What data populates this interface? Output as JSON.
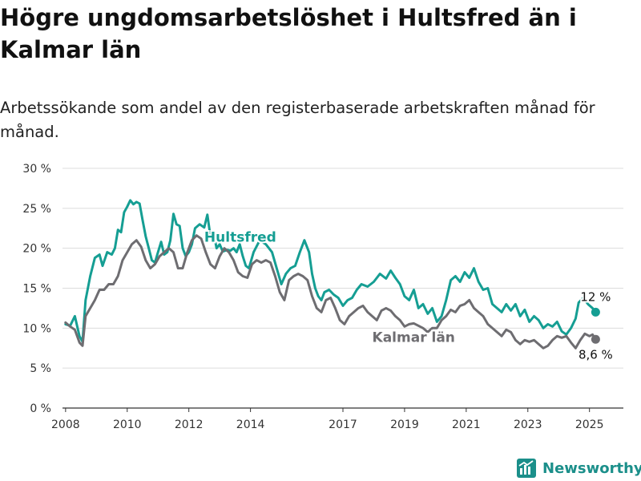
{
  "title": "Högre ungdomsarbetslöshet i Hultsfred än i Kalmar län",
  "subtitle": "Arbetssökande som andel av den registerbaserade arbetskraften månad för månad.",
  "brand": {
    "name": "Newsworthy",
    "icon": "newsworthy-logo-icon"
  },
  "colors": {
    "hultsfred": "#159e93",
    "kalmar": "#6e6d71",
    "grid": "#dcdcdc",
    "axis": "#333333"
  },
  "chart_data": {
    "type": "line",
    "title": "Högre ungdomsarbetslöshet i Hultsfred än i Kalmar län",
    "subtitle": "Arbetssökande som andel av den registerbaserade arbetskraften månad för månad.",
    "xlabel": "",
    "ylabel": "",
    "xlim": [
      2007.9,
      2026.1
    ],
    "ylim": [
      0,
      30
    ],
    "x_ticks": [
      2008,
      2010,
      2012,
      2014,
      2017,
      2019,
      2021,
      2023,
      2025
    ],
    "y_ticks": [
      {
        "value": 0,
        "label": "0 %"
      },
      {
        "value": 5,
        "label": "5 %"
      },
      {
        "value": 10,
        "label": "10 %"
      },
      {
        "value": 15,
        "label": "15 %"
      },
      {
        "value": 20,
        "label": "20 %"
      },
      {
        "value": 25,
        "label": "25 %"
      },
      {
        "value": 30,
        "label": "30 %"
      }
    ],
    "grid": "horizontal",
    "legend": "inline labels",
    "series": [
      {
        "name": "Hultsfred",
        "color": "#159e93",
        "end_label": "12 %",
        "points": [
          [
            2008.0,
            10.5
          ],
          [
            2008.15,
            10.3
          ],
          [
            2008.3,
            11.5
          ],
          [
            2008.45,
            9.0
          ],
          [
            2008.55,
            8.3
          ],
          [
            2008.65,
            13.5
          ],
          [
            2008.8,
            16.5
          ],
          [
            2008.95,
            18.8
          ],
          [
            2009.1,
            19.2
          ],
          [
            2009.2,
            17.8
          ],
          [
            2009.35,
            19.5
          ],
          [
            2009.5,
            19.2
          ],
          [
            2009.6,
            20.0
          ],
          [
            2009.7,
            22.3
          ],
          [
            2009.8,
            22.0
          ],
          [
            2009.9,
            24.5
          ],
          [
            2010.0,
            25.2
          ],
          [
            2010.1,
            26.0
          ],
          [
            2010.2,
            25.5
          ],
          [
            2010.3,
            25.8
          ],
          [
            2010.4,
            25.6
          ],
          [
            2010.5,
            23.5
          ],
          [
            2010.6,
            21.5
          ],
          [
            2010.7,
            20.0
          ],
          [
            2010.8,
            18.5
          ],
          [
            2010.9,
            18.2
          ],
          [
            2011.0,
            19.5
          ],
          [
            2011.1,
            20.8
          ],
          [
            2011.2,
            19.2
          ],
          [
            2011.3,
            19.5
          ],
          [
            2011.4,
            21.0
          ],
          [
            2011.5,
            24.3
          ],
          [
            2011.6,
            23.0
          ],
          [
            2011.7,
            22.8
          ],
          [
            2011.8,
            20.0
          ],
          [
            2011.9,
            19.0
          ],
          [
            2012.0,
            19.5
          ],
          [
            2012.1,
            20.5
          ],
          [
            2012.2,
            22.5
          ],
          [
            2012.35,
            23.0
          ],
          [
            2012.5,
            22.6
          ],
          [
            2012.6,
            24.2
          ],
          [
            2012.7,
            21.5
          ],
          [
            2012.8,
            22.0
          ],
          [
            2012.9,
            20.0
          ],
          [
            2013.0,
            20.5
          ],
          [
            2013.1,
            19.6
          ],
          [
            2013.25,
            19.8
          ],
          [
            2013.35,
            19.7
          ],
          [
            2013.45,
            20.0
          ],
          [
            2013.55,
            19.5
          ],
          [
            2013.65,
            20.5
          ],
          [
            2013.75,
            19.0
          ],
          [
            2013.85,
            17.8
          ],
          [
            2013.95,
            17.5
          ],
          [
            2014.1,
            19.5
          ],
          [
            2014.3,
            21.0
          ],
          [
            2014.5,
            20.5
          ],
          [
            2014.7,
            19.5
          ],
          [
            2014.85,
            17.5
          ],
          [
            2015.0,
            15.5
          ],
          [
            2015.15,
            16.8
          ],
          [
            2015.3,
            17.5
          ],
          [
            2015.45,
            17.8
          ],
          [
            2015.6,
            19.5
          ],
          [
            2015.75,
            21.0
          ],
          [
            2015.9,
            19.5
          ],
          [
            2016.0,
            16.8
          ],
          [
            2016.1,
            15.0
          ],
          [
            2016.2,
            14.0
          ],
          [
            2016.3,
            13.5
          ],
          [
            2016.4,
            14.5
          ],
          [
            2016.55,
            14.8
          ],
          [
            2016.7,
            14.2
          ],
          [
            2016.85,
            13.8
          ],
          [
            2017.0,
            12.8
          ],
          [
            2017.15,
            13.5
          ],
          [
            2017.3,
            13.8
          ],
          [
            2017.45,
            14.8
          ],
          [
            2017.6,
            15.5
          ],
          [
            2017.8,
            15.2
          ],
          [
            2018.0,
            15.8
          ],
          [
            2018.2,
            16.8
          ],
          [
            2018.4,
            16.2
          ],
          [
            2018.55,
            17.2
          ],
          [
            2018.7,
            16.3
          ],
          [
            2018.85,
            15.5
          ],
          [
            2019.0,
            14.0
          ],
          [
            2019.15,
            13.5
          ],
          [
            2019.3,
            14.8
          ],
          [
            2019.45,
            12.5
          ],
          [
            2019.6,
            13.0
          ],
          [
            2019.75,
            11.8
          ],
          [
            2019.9,
            12.5
          ],
          [
            2020.05,
            10.8
          ],
          [
            2020.2,
            11.5
          ],
          [
            2020.35,
            13.5
          ],
          [
            2020.5,
            16.0
          ],
          [
            2020.65,
            16.5
          ],
          [
            2020.8,
            15.8
          ],
          [
            2020.95,
            17.0
          ],
          [
            2021.1,
            16.3
          ],
          [
            2021.25,
            17.5
          ],
          [
            2021.4,
            15.8
          ],
          [
            2021.55,
            14.8
          ],
          [
            2021.7,
            15.0
          ],
          [
            2021.85,
            13.0
          ],
          [
            2022.0,
            12.5
          ],
          [
            2022.15,
            12.0
          ],
          [
            2022.3,
            13.0
          ],
          [
            2022.45,
            12.2
          ],
          [
            2022.6,
            13.0
          ],
          [
            2022.75,
            11.5
          ],
          [
            2022.9,
            12.3
          ],
          [
            2023.05,
            10.8
          ],
          [
            2023.2,
            11.5
          ],
          [
            2023.35,
            11.0
          ],
          [
            2023.5,
            10.0
          ],
          [
            2023.65,
            10.5
          ],
          [
            2023.8,
            10.2
          ],
          [
            2023.95,
            10.8
          ],
          [
            2024.1,
            9.6
          ],
          [
            2024.25,
            9.2
          ],
          [
            2024.4,
            10.0
          ],
          [
            2024.55,
            11.2
          ],
          [
            2024.65,
            13.2
          ],
          [
            2024.8,
            13.8
          ],
          [
            2024.95,
            13.0
          ],
          [
            2025.1,
            12.5
          ],
          [
            2025.2,
            12.0
          ]
        ]
      },
      {
        "name": "Kalmar län",
        "color": "#6e6d71",
        "end_label": "8,6 %",
        "points": [
          [
            2008.0,
            10.7
          ],
          [
            2008.15,
            10.2
          ],
          [
            2008.3,
            9.8
          ],
          [
            2008.45,
            8.2
          ],
          [
            2008.55,
            7.8
          ],
          [
            2008.65,
            11.5
          ],
          [
            2008.8,
            12.5
          ],
          [
            2008.95,
            13.5
          ],
          [
            2009.1,
            14.8
          ],
          [
            2009.25,
            14.8
          ],
          [
            2009.4,
            15.5
          ],
          [
            2009.55,
            15.5
          ],
          [
            2009.7,
            16.5
          ],
          [
            2009.85,
            18.5
          ],
          [
            2010.0,
            19.5
          ],
          [
            2010.15,
            20.5
          ],
          [
            2010.3,
            21.0
          ],
          [
            2010.45,
            20.2
          ],
          [
            2010.6,
            18.5
          ],
          [
            2010.75,
            17.5
          ],
          [
            2010.9,
            18.0
          ],
          [
            2011.05,
            19.0
          ],
          [
            2011.2,
            19.5
          ],
          [
            2011.35,
            20.0
          ],
          [
            2011.5,
            19.5
          ],
          [
            2011.65,
            17.5
          ],
          [
            2011.8,
            17.5
          ],
          [
            2011.95,
            19.5
          ],
          [
            2012.1,
            21.0
          ],
          [
            2012.25,
            21.6
          ],
          [
            2012.4,
            21.2
          ],
          [
            2012.55,
            19.5
          ],
          [
            2012.7,
            18.0
          ],
          [
            2012.85,
            17.5
          ],
          [
            2013.0,
            19.0
          ],
          [
            2013.15,
            20.0
          ],
          [
            2013.3,
            19.5
          ],
          [
            2013.45,
            18.5
          ],
          [
            2013.6,
            17.0
          ],
          [
            2013.75,
            16.5
          ],
          [
            2013.9,
            16.3
          ],
          [
            2014.05,
            18.0
          ],
          [
            2014.2,
            18.5
          ],
          [
            2014.35,
            18.2
          ],
          [
            2014.5,
            18.5
          ],
          [
            2014.65,
            18.2
          ],
          [
            2014.8,
            16.5
          ],
          [
            2014.95,
            14.5
          ],
          [
            2015.1,
            13.5
          ],
          [
            2015.25,
            16.0
          ],
          [
            2015.4,
            16.5
          ],
          [
            2015.55,
            16.8
          ],
          [
            2015.7,
            16.5
          ],
          [
            2015.85,
            16.0
          ],
          [
            2016.0,
            14.0
          ],
          [
            2016.15,
            12.5
          ],
          [
            2016.3,
            12.0
          ],
          [
            2016.45,
            13.5
          ],
          [
            2016.6,
            13.8
          ],
          [
            2016.75,
            12.5
          ],
          [
            2016.9,
            11.0
          ],
          [
            2017.05,
            10.5
          ],
          [
            2017.2,
            11.5
          ],
          [
            2017.35,
            12.0
          ],
          [
            2017.5,
            12.5
          ],
          [
            2017.65,
            12.8
          ],
          [
            2017.8,
            12.0
          ],
          [
            2017.95,
            11.5
          ],
          [
            2018.1,
            11.0
          ],
          [
            2018.25,
            12.2
          ],
          [
            2018.4,
            12.5
          ],
          [
            2018.55,
            12.2
          ],
          [
            2018.7,
            11.5
          ],
          [
            2018.85,
            11.0
          ],
          [
            2019.0,
            10.2
          ],
          [
            2019.15,
            10.5
          ],
          [
            2019.3,
            10.6
          ],
          [
            2019.45,
            10.3
          ],
          [
            2019.6,
            10.0
          ],
          [
            2019.75,
            9.5
          ],
          [
            2019.9,
            10.0
          ],
          [
            2020.05,
            10.0
          ],
          [
            2020.2,
            11.0
          ],
          [
            2020.35,
            11.5
          ],
          [
            2020.5,
            12.3
          ],
          [
            2020.65,
            12.0
          ],
          [
            2020.8,
            12.8
          ],
          [
            2020.95,
            13.0
          ],
          [
            2021.1,
            13.5
          ],
          [
            2021.25,
            12.5
          ],
          [
            2021.4,
            12.0
          ],
          [
            2021.55,
            11.5
          ],
          [
            2021.7,
            10.5
          ],
          [
            2021.85,
            10.0
          ],
          [
            2022.0,
            9.5
          ],
          [
            2022.15,
            9.0
          ],
          [
            2022.3,
            9.8
          ],
          [
            2022.45,
            9.5
          ],
          [
            2022.6,
            8.5
          ],
          [
            2022.75,
            8.0
          ],
          [
            2022.9,
            8.5
          ],
          [
            2023.05,
            8.3
          ],
          [
            2023.2,
            8.5
          ],
          [
            2023.35,
            8.0
          ],
          [
            2023.5,
            7.5
          ],
          [
            2023.65,
            7.8
          ],
          [
            2023.8,
            8.5
          ],
          [
            2023.95,
            9.0
          ],
          [
            2024.1,
            8.8
          ],
          [
            2024.25,
            9.0
          ],
          [
            2024.4,
            8.2
          ],
          [
            2024.55,
            7.5
          ],
          [
            2024.7,
            8.5
          ],
          [
            2024.85,
            9.3
          ],
          [
            2025.0,
            9.0
          ],
          [
            2025.1,
            9.2
          ],
          [
            2025.2,
            8.6
          ]
        ]
      }
    ],
    "annotations": [
      {
        "text": "Hultsfred",
        "series": "Hultsfred"
      },
      {
        "text": "Kalmar län",
        "series": "Kalmar län"
      }
    ]
  }
}
